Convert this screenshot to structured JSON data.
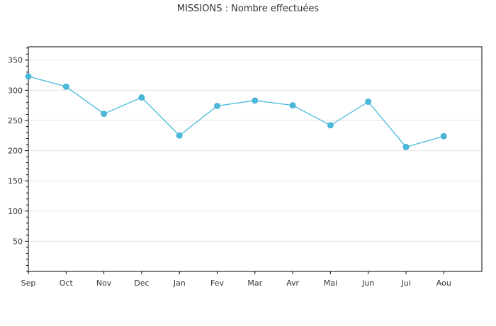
{
  "chart_data": {
    "type": "line",
    "title": "MISSIONS : Nombre effectuées",
    "xlabel": "",
    "ylabel": "",
    "categories": [
      "Sep",
      "Oct",
      "Nov",
      "Dec",
      "Jan",
      "Fev",
      "Mar",
      "Avr",
      "Mai",
      "Jun",
      "Jui",
      "Aou"
    ],
    "series": [
      {
        "values": [
          323,
          306,
          261,
          288,
          225,
          274,
          283,
          275,
          242,
          281,
          206,
          224
        ]
      }
    ],
    "yticks": [
      50,
      100,
      150,
      200,
      250,
      300,
      350
    ],
    "ylim": [
      0,
      372
    ],
    "grid": true,
    "legend": "none",
    "colors": {
      "series": "#4ab9dc",
      "axis": "#000000",
      "grid": "#e6e6e6"
    }
  }
}
